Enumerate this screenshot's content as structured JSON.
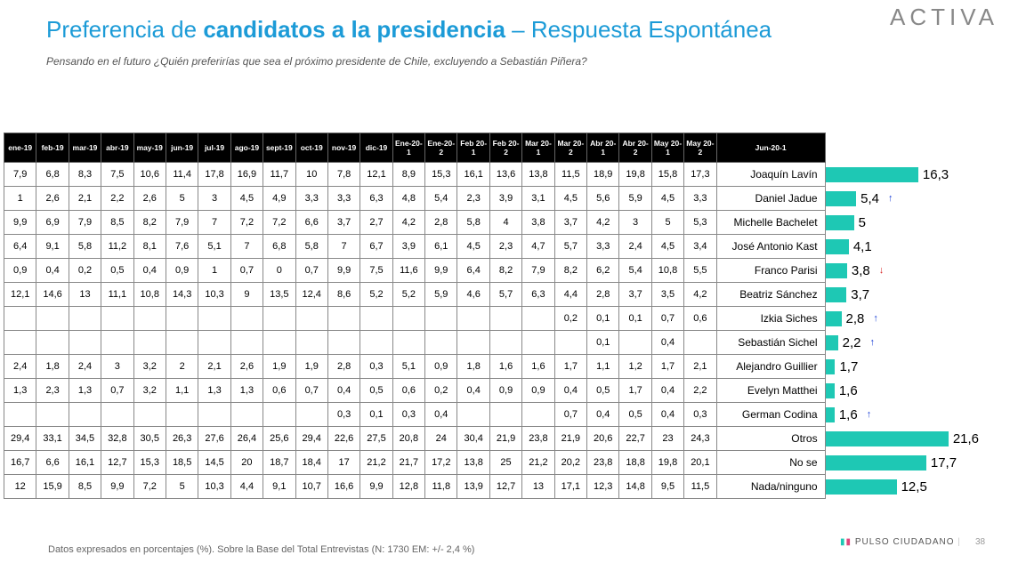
{
  "header": {
    "title_parts": [
      "Preferencia de ",
      "candidatos a la presidencia",
      " – Respuesta Espontánea"
    ],
    "subtitle": "Pensando en el futuro ¿Quién preferirías que sea el próximo presidente de Chile, excluyendo a Sebastián Piñera?",
    "logo": "ACTIVA"
  },
  "table": {
    "columns": [
      "ene-19",
      "feb-19",
      "mar-19",
      "abr-19",
      "may-19",
      "jun-19",
      "jul-19",
      "ago-19",
      "sept-19",
      "oct-19",
      "nov-19",
      "dic-19",
      "Ene-20-1",
      "Ene-20-2",
      "Feb 20-1",
      "Feb 20-2",
      "Mar 20-1",
      "Mar 20-2",
      "Abr 20-1",
      "Abr 20-2",
      "May 20-1",
      "May 20-2",
      "Jun-20-1"
    ],
    "rows": [
      [
        "7,9",
        "6,8",
        "8,3",
        "7,5",
        "10,6",
        "11,4",
        "17,8",
        "16,9",
        "11,7",
        "10",
        "7,8",
        "12,1",
        "8,9",
        "15,3",
        "16,1",
        "13,6",
        "13,8",
        "11,5",
        "18,9",
        "19,8",
        "15,8",
        "17,3"
      ],
      [
        "1",
        "2,6",
        "2,1",
        "2,2",
        "2,6",
        "5",
        "3",
        "4,5",
        "4,9",
        "3,3",
        "3,3",
        "6,3",
        "4,8",
        "5,4",
        "2,3",
        "3,9",
        "3,1",
        "4,5",
        "5,6",
        "5,9",
        "4,5",
        "3,3"
      ],
      [
        "9,9",
        "6,9",
        "7,9",
        "8,5",
        "8,2",
        "7,9",
        "7",
        "7,2",
        "7,2",
        "6,6",
        "3,7",
        "2,7",
        "4,2",
        "2,8",
        "5,8",
        "4",
        "3,8",
        "3,7",
        "4,2",
        "3",
        "5",
        "5,3"
      ],
      [
        "6,4",
        "9,1",
        "5,8",
        "11,2",
        "8,1",
        "7,6",
        "5,1",
        "7",
        "6,8",
        "5,8",
        "7",
        "6,7",
        "3,9",
        "6,1",
        "4,5",
        "2,3",
        "4,7",
        "5,7",
        "3,3",
        "2,4",
        "4,5",
        "3,4"
      ],
      [
        "0,9",
        "0,4",
        "0,2",
        "0,5",
        "0,4",
        "0,9",
        "1",
        "0,7",
        "0",
        "0,7",
        "9,9",
        "7,5",
        "11,6",
        "9,9",
        "6,4",
        "8,2",
        "7,9",
        "8,2",
        "6,2",
        "5,4",
        "10,8",
        "5,5"
      ],
      [
        "12,1",
        "14,6",
        "13",
        "11,1",
        "10,8",
        "14,3",
        "10,3",
        "9",
        "13,5",
        "12,4",
        "8,6",
        "5,2",
        "5,2",
        "5,9",
        "4,6",
        "5,7",
        "6,3",
        "4,4",
        "2,8",
        "3,7",
        "3,5",
        "4,2"
      ],
      [
        null,
        null,
        null,
        null,
        null,
        null,
        null,
        null,
        null,
        null,
        null,
        null,
        null,
        null,
        null,
        null,
        null,
        "0,2",
        "0,1",
        "0,1",
        "0,7",
        "0,6"
      ],
      [
        null,
        null,
        null,
        null,
        null,
        null,
        null,
        null,
        null,
        null,
        null,
        null,
        null,
        null,
        null,
        null,
        null,
        null,
        "0,1",
        null,
        "0,4",
        null
      ],
      [
        "2,4",
        "1,8",
        "2,4",
        "3",
        "3,2",
        "2",
        "2,1",
        "2,6",
        "1,9",
        "1,9",
        "2,8",
        "0,3",
        "5,1",
        "0,9",
        "1,8",
        "1,6",
        "1,6",
        "1,7",
        "1,1",
        "1,2",
        "1,7",
        "2,1"
      ],
      [
        "1,3",
        "2,3",
        "1,3",
        "0,7",
        "3,2",
        "1,1",
        "1,3",
        "1,3",
        "0,6",
        "0,7",
        "0,4",
        "0,5",
        "0,6",
        "0,2",
        "0,4",
        "0,9",
        "0,9",
        "0,4",
        "0,5",
        "1,7",
        "0,4",
        "2,2"
      ],
      [
        null,
        null,
        null,
        null,
        null,
        null,
        null,
        null,
        null,
        null,
        "0,3",
        "0,1",
        "0,3",
        "0,4",
        null,
        null,
        null,
        "0,7",
        "0,4",
        "0,5",
        "0,4",
        "0,3"
      ],
      [
        "29,4",
        "33,1",
        "34,5",
        "32,8",
        "30,5",
        "26,3",
        "27,6",
        "26,4",
        "25,6",
        "29,4",
        "22,6",
        "27,5",
        "20,8",
        "24",
        "30,4",
        "21,9",
        "23,8",
        "21,9",
        "20,6",
        "22,7",
        "23",
        "24,3"
      ],
      [
        "16,7",
        "6,6",
        "16,1",
        "12,7",
        "15,3",
        "18,5",
        "14,5",
        "20",
        "18,7",
        "18,4",
        "17",
        "21,2",
        "21,7",
        "17,2",
        "13,8",
        "25",
        "21,2",
        "20,2",
        "23,8",
        "18,8",
        "19,8",
        "20,1"
      ],
      [
        "12",
        "15,9",
        "8,5",
        "9,9",
        "7,2",
        "5",
        "10,3",
        "4,4",
        "9,1",
        "10,7",
        "16,6",
        "9,9",
        "12,8",
        "11,8",
        "13,9",
        "12,7",
        "13",
        "17,1",
        "12,3",
        "14,8",
        "9,5",
        "11,5"
      ]
    ]
  },
  "chart_data": {
    "type": "bar",
    "orientation": "horizontal",
    "color": "#1ec8b4",
    "categories": [
      "Joaquín Lavín",
      "Daniel Jadue",
      "Michelle Bachelet",
      "José Antonio Kast",
      "Franco Parisi",
      "Beatriz Sánchez",
      "Izkia Siches",
      "Sebastián Sichel",
      "Alejandro Guillier",
      "Evelyn Matthei",
      "German Codina",
      "Otros",
      "No se",
      "Nada/ninguno"
    ],
    "values": [
      16.3,
      5.4,
      5,
      4.1,
      3.8,
      3.7,
      2.8,
      2.2,
      1.7,
      1.6,
      1.6,
      21.6,
      17.7,
      12.5
    ],
    "value_labels": [
      "16,3",
      "5,4",
      "5",
      "4,1",
      "3,8",
      "3,7",
      "2,8",
      "2,2",
      "1,7",
      "1,6",
      "1,6",
      "21,6",
      "17,7",
      "12,5"
    ],
    "trends": [
      null,
      "up",
      null,
      null,
      "down",
      null,
      "up",
      "up",
      null,
      null,
      "up",
      null,
      null,
      null
    ]
  },
  "footer": {
    "note": "Datos expresados en porcentajes (%). Sobre la Base del Total Entrevistas (N: 1730  EM: +/- 2,4 %)",
    "brand": "PULSO CIUDADANO",
    "page": "38"
  }
}
